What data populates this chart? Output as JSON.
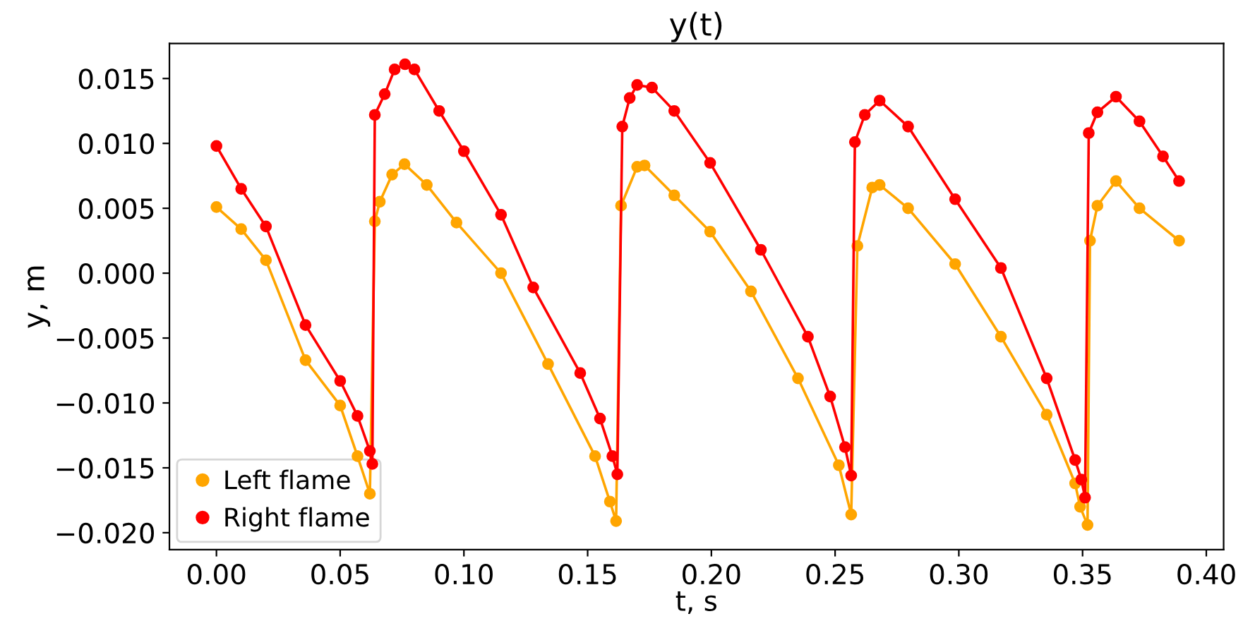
{
  "chart_data": {
    "type": "line",
    "title": "y(t)",
    "xlabel": "t, s",
    "ylabel": "y, m",
    "xlim": [
      -0.019,
      0.407
    ],
    "ylim": [
      -0.0213,
      0.0177
    ],
    "xticks": [
      {
        "value": 0,
        "label": "0.00"
      },
      {
        "value": 0.05,
        "label": "0.05"
      },
      {
        "value": 0.1,
        "label": "0.10"
      },
      {
        "value": 0.15,
        "label": "0.15"
      },
      {
        "value": 0.2,
        "label": "0.20"
      },
      {
        "value": 0.25,
        "label": "0.25"
      },
      {
        "value": 0.3,
        "label": "0.30"
      },
      {
        "value": 0.35,
        "label": "0.35"
      },
      {
        "value": 0.4,
        "label": "0.40"
      }
    ],
    "yticks": [
      {
        "value": -0.02,
        "label": "−0.020"
      },
      {
        "value": -0.015,
        "label": "−0.015"
      },
      {
        "value": -0.01,
        "label": "−0.010"
      },
      {
        "value": -0.005,
        "label": "−0.005"
      },
      {
        "value": 0,
        "label": "0.000"
      },
      {
        "value": 0.005,
        "label": "0.005"
      },
      {
        "value": 0.01,
        "label": "0.010"
      },
      {
        "value": 0.015,
        "label": "0.015"
      }
    ],
    "series": [
      {
        "name": "Left flame",
        "color": "#ffa500",
        "x": [
          0,
          0.01,
          0.02,
          0.036,
          0.05,
          0.057,
          0.062,
          0.064,
          0.066,
          0.071,
          0.076,
          0.085,
          0.097,
          0.115,
          0.134,
          0.153,
          0.159,
          0.1615,
          0.1635,
          0.17,
          0.173,
          0.185,
          0.1995,
          0.216,
          0.235,
          0.2515,
          0.2565,
          0.259,
          0.265,
          0.268,
          0.2795,
          0.2985,
          0.317,
          0.3355,
          0.347,
          0.349,
          0.352,
          0.353,
          0.356,
          0.3635,
          0.373,
          0.389
        ],
        "values": [
          0.0051,
          0.0034,
          0.001,
          -0.0067,
          -0.0102,
          -0.0141,
          -0.017,
          0.004,
          0.0055,
          0.0076,
          0.0084,
          0.0068,
          0.0039,
          0.0,
          -0.007,
          -0.0141,
          -0.0176,
          -0.0191,
          0.0052,
          0.0082,
          0.0083,
          0.006,
          0.0032,
          -0.0014,
          -0.0081,
          -0.0148,
          -0.0186,
          0.0021,
          0.0066,
          0.0068,
          0.005,
          0.0007,
          -0.0049,
          -0.0109,
          -0.0162,
          -0.018,
          -0.0194,
          0.0025,
          0.0052,
          0.0071,
          0.005,
          0.0025
        ]
      },
      {
        "name": "Right flame",
        "color": "#ff0000",
        "x": [
          0,
          0.01,
          0.02,
          0.036,
          0.05,
          0.057,
          0.062,
          0.063,
          0.064,
          0.068,
          0.072,
          0.0762,
          0.08,
          0.09,
          0.1,
          0.115,
          0.128,
          0.147,
          0.155,
          0.16,
          0.162,
          0.164,
          0.167,
          0.17,
          0.176,
          0.185,
          0.1995,
          0.22,
          0.239,
          0.248,
          0.254,
          0.2565,
          0.258,
          0.262,
          0.268,
          0.2795,
          0.2985,
          0.317,
          0.3355,
          0.347,
          0.3495,
          0.351,
          0.3525,
          0.356,
          0.3635,
          0.373,
          0.3825,
          0.389
        ],
        "values": [
          0.0098,
          0.0065,
          0.0036,
          -0.004,
          -0.0083,
          -0.011,
          -0.0137,
          -0.0147,
          0.0122,
          0.0138,
          0.0157,
          0.0161,
          0.0157,
          0.0125,
          0.0094,
          0.0045,
          -0.0011,
          -0.0077,
          -0.0112,
          -0.0141,
          -0.0155,
          0.0113,
          0.0135,
          0.0145,
          0.0143,
          0.0125,
          0.0085,
          0.0018,
          -0.0049,
          -0.0095,
          -0.0134,
          -0.0156,
          0.0101,
          0.0122,
          0.0133,
          0.0113,
          0.0057,
          0.0004,
          -0.0081,
          -0.0144,
          -0.0159,
          -0.0173,
          0.0108,
          0.0124,
          0.0136,
          0.0117,
          0.009,
          0.0071
        ]
      }
    ],
    "marker": "circle",
    "line_style": "solid",
    "grid": false,
    "legend": "lower left"
  }
}
